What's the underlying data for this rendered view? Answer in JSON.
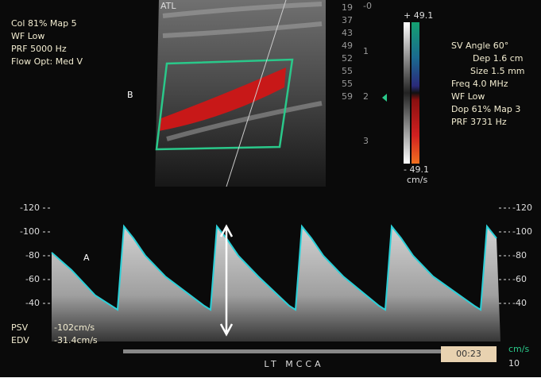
{
  "header_left": {
    "lines": [
      "Col 81%  Map 5",
      "WF Low",
      "PRF 5000  Hz",
      "Flow Opt: Med V"
    ]
  },
  "labels": {
    "atl": "ATL",
    "b": "B",
    "a": "A"
  },
  "depth_scale": {
    "left": [
      "19",
      "37",
      "43",
      "49",
      "52",
      "55",
      "55",
      "59"
    ],
    "right": [
      "-0",
      "1",
      "2",
      "3"
    ]
  },
  "color_bar": {
    "max": "+ 49.1",
    "min": "- 49.1",
    "unit": "cm/s"
  },
  "settings_right": [
    "SV Angle 60°",
    "Dep 1.6  cm",
    "Size 1.5  mm",
    "Freq 4.0  MHz",
    "WF Low",
    "Dop 61%  Map 3",
    "PRF 3731  Hz"
  ],
  "spectrum": {
    "left_ticks": [
      "-120",
      "-100",
      "-80",
      "-60",
      "-40"
    ],
    "right_ticks": [
      "-120",
      "-100",
      "-80",
      "-60",
      "-40"
    ],
    "unit": "cm/s",
    "measurements": [
      {
        "name": "PSV",
        "value": "-102cm/s"
      },
      {
        "name": "EDV",
        "value": "-31.4cm/s"
      }
    ],
    "vessel": "LT  MCCA",
    "time": "00:23",
    "frame": "10"
  }
}
